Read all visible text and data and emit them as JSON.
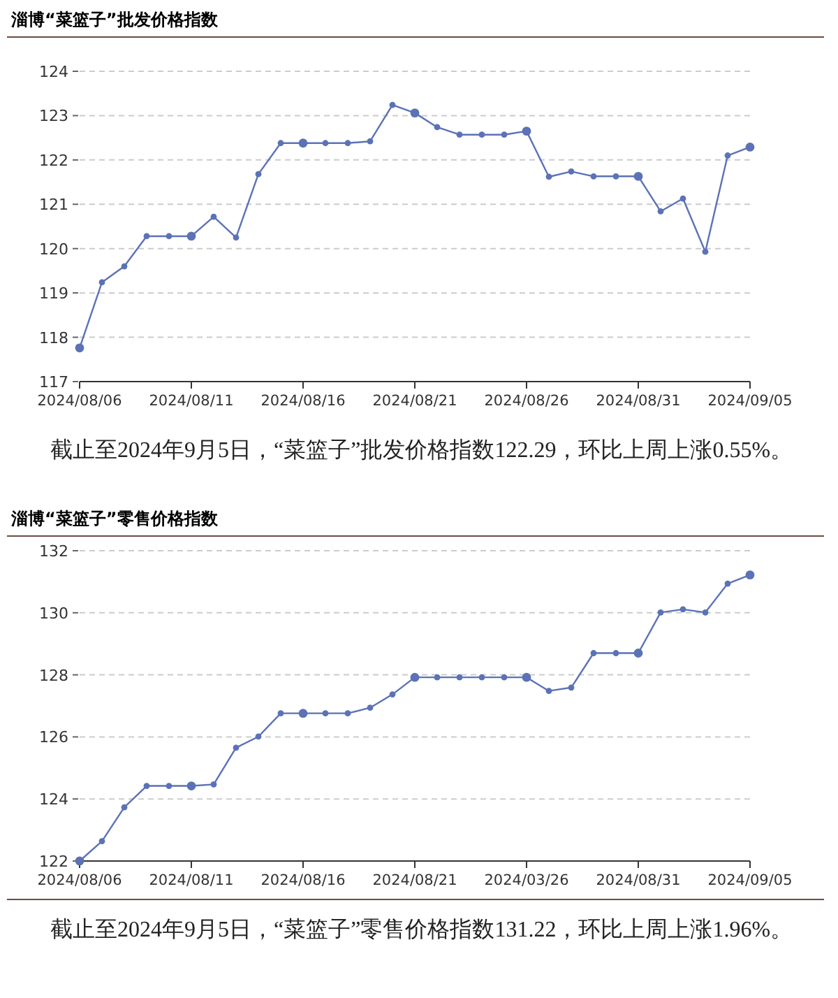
{
  "chart_data": [
    {
      "type": "line",
      "title": "淄博“菜篮子”批发价格指数",
      "annotations": [
        "截止至2024年9月5日，“菜篮子”批发价格指数122.29，环比上周上涨0.55%。"
      ],
      "x": [
        "2024-08-06",
        "2024-08-07",
        "2024-08-08",
        "2024-08-09",
        "2024-08-10",
        "2024-08-11",
        "2024-08-12",
        "2024-08-13",
        "2024-08-14",
        "2024-08-15",
        "2024-08-16",
        "2024-08-17",
        "2024-08-18",
        "2024-08-19",
        "2024-08-20",
        "2024-08-21",
        "2024-08-22",
        "2024-08-23",
        "2024-08-24",
        "2024-08-25",
        "2024-08-26",
        "2024-08-27",
        "2024-08-28",
        "2024-08-29",
        "2024-08-30",
        "2024-08-31",
        "2024-09-01",
        "2024-09-02",
        "2024-09-03",
        "2024-09-04",
        "2024-09-05"
      ],
      "series": [
        {
          "color": "#5b72b6",
          "values": [
            117.76,
            119.24,
            119.6,
            120.28,
            120.28,
            120.28,
            120.72,
            120.25,
            121.68,
            122.38,
            122.38,
            122.38,
            122.38,
            122.42,
            123.24,
            123.06,
            122.74,
            122.57,
            122.57,
            122.57,
            122.65,
            121.62,
            121.74,
            121.63,
            121.63,
            121.63,
            120.84,
            121.13,
            119.93,
            122.1,
            122.29
          ]
        }
      ],
      "xlim": [
        "2024-08-06",
        "2024-09-05"
      ],
      "xticks": [
        {
          "value": "2024-08-06",
          "label": "2024/08/06"
        },
        {
          "value": "2024-08-11",
          "label": "2024/08/11"
        },
        {
          "value": "2024-08-16",
          "label": "2024/08/16"
        },
        {
          "value": "2024-08-21",
          "label": "2024/08/21"
        },
        {
          "value": "2024-08-26",
          "label": "2024/08/26"
        },
        {
          "value": "2024-08-31",
          "label": "2024/08/31"
        },
        {
          "value": "2024-09-05",
          "label": "2024/09/05"
        }
      ],
      "ylim": [
        117,
        124
      ],
      "yticks": [
        117,
        118,
        119,
        120,
        121,
        122,
        123,
        124
      ],
      "grid": "y",
      "marker": "circle",
      "line_style": "solid"
    },
    {
      "type": "line",
      "title": "淄博“菜篮子”零售价格指数",
      "annotations": [
        "截止至2024年9月5日，“菜篮子”零售价格指数131.22，环比上周上涨1.96%。"
      ],
      "x": [
        "2024-08-06",
        "2024-08-07",
        "2024-08-08",
        "2024-08-09",
        "2024-08-10",
        "2024-08-11",
        "2024-08-12",
        "2024-08-13",
        "2024-08-14",
        "2024-08-15",
        "2024-08-16",
        "2024-08-17",
        "2024-08-18",
        "2024-08-19",
        "2024-08-20",
        "2024-08-21",
        "2024-08-22",
        "2024-08-23",
        "2024-08-24",
        "2024-08-25",
        "2024-08-26",
        "2024-08-27",
        "2024-08-28",
        "2024-08-29",
        "2024-08-30",
        "2024-08-31",
        "2024-09-01",
        "2024-09-02",
        "2024-09-03",
        "2024-09-04",
        "2024-09-05"
      ],
      "series": [
        {
          "color": "#5b72b6",
          "values": [
            122.0,
            122.64,
            123.73,
            124.42,
            124.42,
            124.42,
            124.47,
            125.65,
            126.01,
            126.76,
            126.76,
            126.76,
            126.76,
            126.94,
            127.37,
            127.92,
            127.92,
            127.92,
            127.92,
            127.92,
            127.92,
            127.48,
            127.59,
            128.7,
            128.7,
            128.7,
            130.01,
            130.11,
            130.01,
            130.94,
            131.22
          ]
        }
      ],
      "xlim": [
        "2024-08-06",
        "2024-09-05"
      ],
      "xticks": [
        {
          "value": "2024-08-06",
          "label": "2024/08/06"
        },
        {
          "value": "2024-08-11",
          "label": "2024/08/11"
        },
        {
          "value": "2024-08-16",
          "label": "2024/08/16"
        },
        {
          "value": "2024-08-21",
          "label": "2024/08/21"
        },
        {
          "value": "2024-08-26",
          "label": "2024/03/26"
        },
        {
          "value": "2024-08-31",
          "label": "2024/08/31"
        },
        {
          "value": "2024-09-05",
          "label": "2024/09/05"
        }
      ],
      "ylim": [
        122,
        132
      ],
      "yticks": [
        122,
        124,
        126,
        128,
        130,
        132
      ],
      "grid": "y",
      "marker": "circle",
      "line_style": "solid"
    }
  ]
}
